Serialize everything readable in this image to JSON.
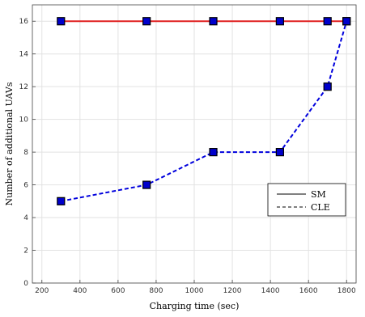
{
  "chart_data": {
    "type": "line",
    "title": "",
    "xlabel": "Charging time (sec)",
    "ylabel": "Number of additional UAVs",
    "xlim": [
      150,
      1850
    ],
    "ylim": [
      0,
      17
    ],
    "xticks": [
      200,
      400,
      600,
      800,
      1000,
      1200,
      1400,
      1600,
      1800
    ],
    "yticks": [
      0,
      2,
      4,
      6,
      8,
      10,
      12,
      14,
      16
    ],
    "grid": true,
    "legend_position": "lower-right",
    "series": [
      {
        "name": "SM",
        "style": "solid",
        "line_color": "#e02020",
        "marker": "square",
        "marker_fill": "#0000cc",
        "x": [
          300,
          750,
          1100,
          1450,
          1700,
          1800
        ],
        "y": [
          16,
          16,
          16,
          16,
          16,
          16
        ]
      },
      {
        "name": "CLE",
        "style": "dashed",
        "line_color": "#0000dd",
        "marker": "square",
        "marker_fill": "#0000cc",
        "x": [
          300,
          750,
          1100,
          1450,
          1700,
          1800
        ],
        "y": [
          5,
          6,
          8,
          8,
          12,
          16
        ]
      }
    ]
  }
}
